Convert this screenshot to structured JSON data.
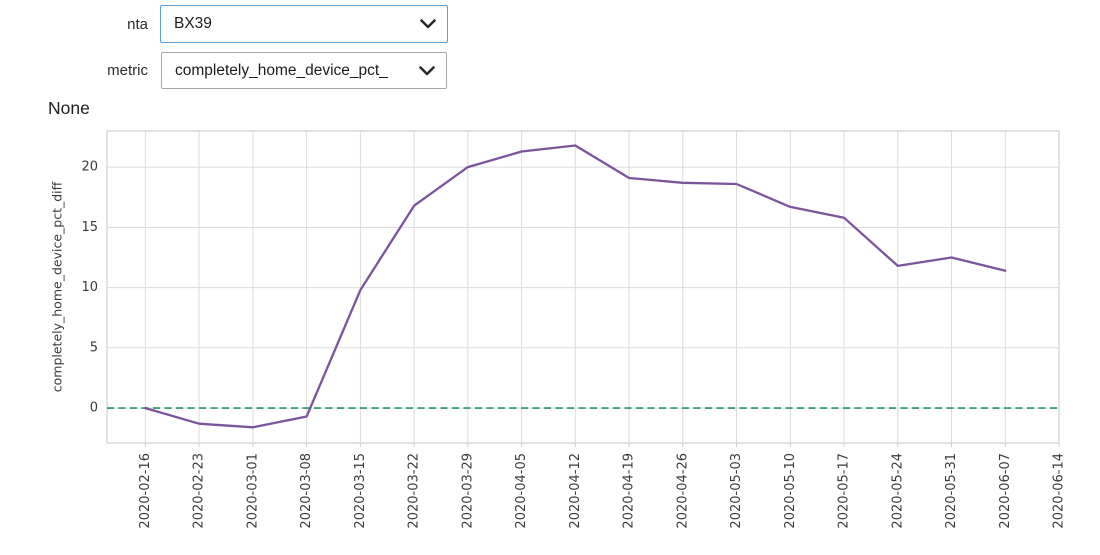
{
  "controls": {
    "nta": {
      "label": "nta",
      "value": "BX39"
    },
    "metric": {
      "label": "metric",
      "value": "completely_home_device_pct_"
    }
  },
  "output_text": "None",
  "colors": {
    "dropdown_focus_border": "#5c9fd9",
    "dropdown_border": "#a8a8a8",
    "grid": "#dcdcdc",
    "frame": "#cfcfcf",
    "tick_text": "#3a3a3a"
  },
  "chart_data": {
    "type": "line",
    "title": "",
    "xlabel": "",
    "ylabel": "completely_home_device_pct_diff",
    "grid": true,
    "legend": "none",
    "x": [
      "2020-02-16",
      "2020-02-23",
      "2020-03-01",
      "2020-03-08",
      "2020-03-15",
      "2020-03-22",
      "2020-03-29",
      "2020-04-05",
      "2020-04-12",
      "2020-04-19",
      "2020-04-26",
      "2020-05-03",
      "2020-05-10",
      "2020-05-17",
      "2020-05-24",
      "2020-05-31",
      "2020-06-07"
    ],
    "values": [
      0.0,
      -1.3,
      -1.6,
      -0.7,
      9.8,
      16.8,
      20.0,
      21.3,
      21.8,
      19.1,
      18.7,
      18.6,
      16.7,
      15.8,
      11.8,
      12.5,
      11.4
    ],
    "series_color": "#7b559c",
    "zero_line": {
      "value": 0,
      "color": "#3ea076",
      "style": "dashed"
    },
    "x_tick_labels": [
      "2020-02-16",
      "2020-02-23",
      "2020-03-01",
      "2020-03-08",
      "2020-03-15",
      "2020-03-22",
      "2020-03-29",
      "2020-04-05",
      "2020-04-12",
      "2020-04-19",
      "2020-04-26",
      "2020-05-03",
      "2020-05-10",
      "2020-05-17",
      "2020-05-24",
      "2020-05-31",
      "2020-06-07",
      "2020-06-14"
    ],
    "y_ticks": [
      0,
      5,
      10,
      15,
      20
    ],
    "xlim": [
      "2020-02-11",
      "2020-06-14"
    ],
    "ylim": [
      -2.9,
      23.0
    ]
  }
}
